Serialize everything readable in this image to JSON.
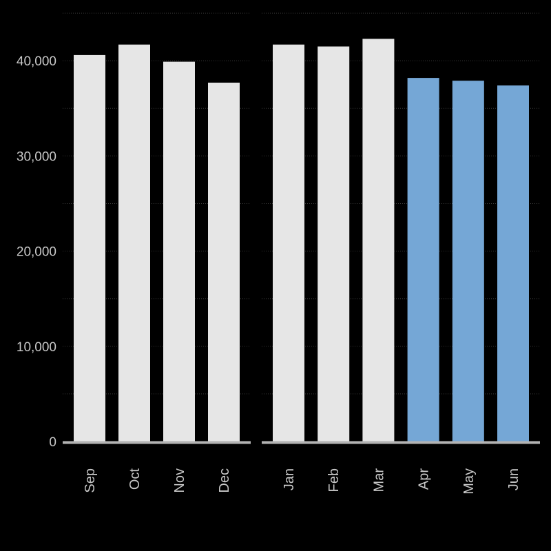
{
  "chart_data": {
    "type": "bar",
    "title": "",
    "xlabel": "",
    "ylabel": "",
    "ylim": [
      0,
      45000
    ],
    "yticks": [
      0,
      10000,
      20000,
      30000,
      40000
    ],
    "ytick_labels": [
      "0",
      "10,000",
      "20,000",
      "30,000",
      "40,000"
    ],
    "grid": true,
    "categories": [
      "Sep",
      "Oct",
      "Nov",
      "Dec",
      "Jan",
      "Feb",
      "Mar",
      "Apr",
      "May",
      "Jun"
    ],
    "values": [
      40600,
      41700,
      39900,
      37700,
      41700,
      41500,
      42300,
      38200,
      37900,
      37400
    ],
    "groups": [
      {
        "categories": [
          "Sep",
          "Oct",
          "Nov",
          "Dec"
        ]
      },
      {
        "categories": [
          "Jan",
          "Feb",
          "Mar",
          "Apr",
          "May",
          "Jun"
        ]
      }
    ],
    "highlighted": [
      "Apr",
      "May",
      "Jun"
    ],
    "colors": {
      "bar": "#e6e6e6",
      "highlight": "#75a7d6",
      "axis": "#b3b3b3",
      "grid": "#3a3a3a",
      "text": "#c8c8c8",
      "background": "#000000"
    }
  }
}
